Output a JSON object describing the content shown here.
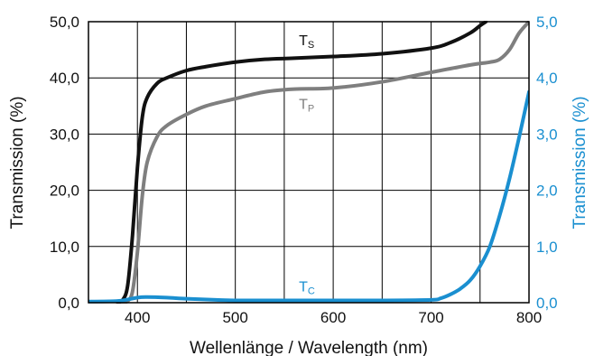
{
  "chart_data": {
    "type": "line",
    "title": "",
    "xlabel": "Wellenlänge / Wavelength (nm)",
    "ylabel_left": "Transmission (%)",
    "ylabel_right": "Transmission (%)",
    "xlim": [
      350,
      800
    ],
    "ylim_left": [
      0,
      50
    ],
    "ylim_right": [
      0,
      5
    ],
    "x_ticks": [
      400,
      500,
      600,
      700,
      800
    ],
    "x_tick_labels": [
      "400",
      "500",
      "600",
      "700",
      "800"
    ],
    "x_grid": [
      350,
      400,
      450,
      500,
      550,
      600,
      650,
      700,
      750,
      800
    ],
    "y_ticks_left": [
      0,
      10,
      20,
      30,
      40,
      50
    ],
    "y_tick_labels_left": [
      "0,0",
      "10,0",
      "20,0",
      "30,0",
      "40,0",
      "50,0"
    ],
    "y_ticks_right": [
      0,
      1,
      2,
      3,
      4,
      5
    ],
    "y_tick_labels_right": [
      "0,0",
      "1,0",
      "2,0",
      "3,0",
      "4,0",
      "5,0"
    ],
    "grid": true,
    "colors": {
      "ts": "#111111",
      "tp": "#7f7f7f",
      "tc": "#1a8fd0",
      "axis_right": "#1a8fd0",
      "grid": "#000000"
    },
    "series": [
      {
        "id": "ts",
        "label_main": "T",
        "label_sub": "S",
        "axis": "left",
        "label_at": [
          565,
          45.8
        ],
        "x": [
          380,
          385,
          390,
          395,
          400,
          405,
          410,
          420,
          430,
          450,
          470,
          500,
          530,
          560,
          600,
          650,
          700,
          720,
          740,
          750,
          756
        ],
        "y": [
          0,
          0.5,
          3,
          12,
          24,
          33,
          36.5,
          39,
          40,
          41.3,
          42,
          42.8,
          43.3,
          43.5,
          43.8,
          44.3,
          45.3,
          46.3,
          48,
          49.3,
          50
        ]
      },
      {
        "id": "tp",
        "label_main": "T",
        "label_sub": "P",
        "axis": "left",
        "label_at": [
          565,
          34.5
        ],
        "x": [
          385,
          390,
          395,
          400,
          405,
          410,
          420,
          430,
          450,
          470,
          500,
          530,
          560,
          600,
          650,
          700,
          740,
          760,
          770,
          780,
          790,
          800
        ],
        "y": [
          0,
          0.3,
          2,
          9,
          19,
          25,
          29.5,
          31.5,
          33.5,
          35,
          36.3,
          37.5,
          38,
          38.2,
          39.3,
          41,
          42.3,
          42.8,
          43.3,
          45,
          48,
          50
        ]
      },
      {
        "id": "tc",
        "label_main": "T",
        "label_sub": "C",
        "axis": "right",
        "label_at": [
          565,
          0.2
        ],
        "x": [
          350,
          380,
          400,
          410,
          430,
          450,
          480,
          500,
          550,
          600,
          650,
          700,
          710,
          720,
          730,
          740,
          750,
          760,
          770,
          780,
          790,
          800
        ],
        "y": [
          0.02,
          0.03,
          0.09,
          0.1,
          0.09,
          0.07,
          0.05,
          0.04,
          0.04,
          0.04,
          0.04,
          0.05,
          0.08,
          0.15,
          0.25,
          0.4,
          0.65,
          1.0,
          1.55,
          2.2,
          2.95,
          3.75
        ]
      }
    ]
  }
}
